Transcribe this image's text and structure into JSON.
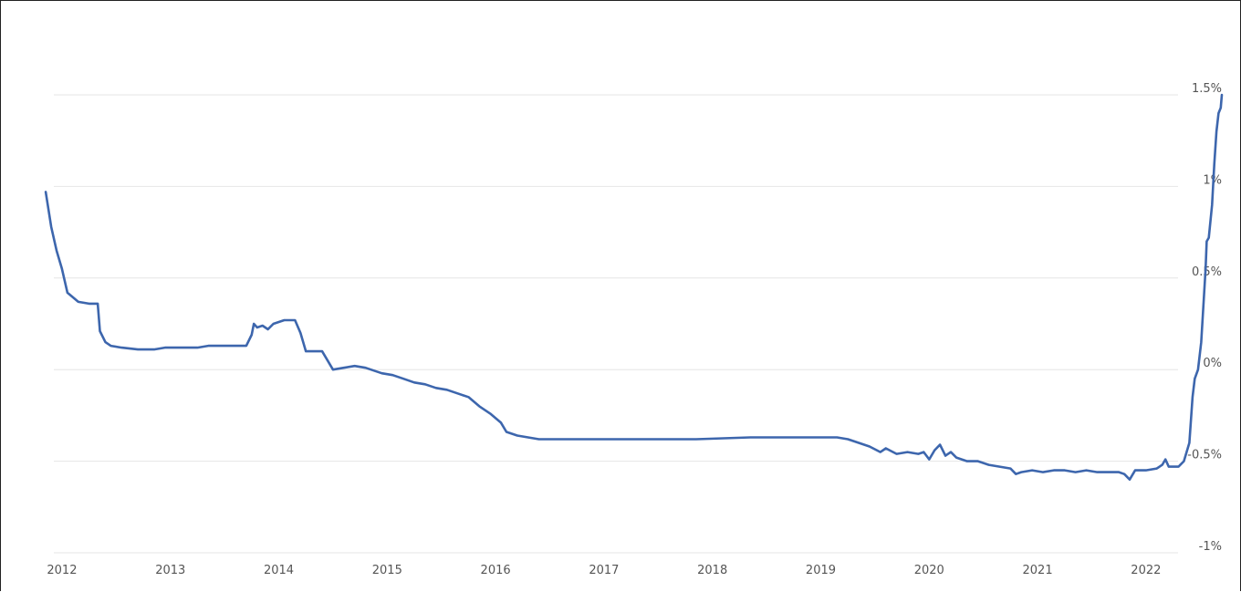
{
  "chart_data": {
    "type": "line",
    "title": "",
    "xlabel": "",
    "ylabel": "",
    "x_ticks": [
      "2012",
      "2013",
      "2014",
      "2015",
      "2016",
      "2017",
      "2018",
      "2019",
      "2020",
      "2021",
      "2022"
    ],
    "y_ticks": [
      {
        "value": 1.5,
        "label": "1.5%"
      },
      {
        "value": 1.0,
        "label": "1%"
      },
      {
        "value": 0.5,
        "label": "0.5%"
      },
      {
        "value": 0.0,
        "label": "0%"
      },
      {
        "value": -0.5,
        "label": "-0.5%"
      },
      {
        "value": -1.0,
        "label": "-1%"
      }
    ],
    "xlim": [
      2011.94,
      2022.85
    ],
    "ylim": [
      -1.0,
      1.5
    ],
    "grid": true,
    "series": [
      {
        "color": "#3d66ad",
        "points": [
          [
            2012.0,
            0.97
          ],
          [
            2012.05,
            0.78
          ],
          [
            2012.1,
            0.65
          ],
          [
            2012.15,
            0.55
          ],
          [
            2012.2,
            0.42
          ],
          [
            2012.3,
            0.37
          ],
          [
            2012.4,
            0.36
          ],
          [
            2012.48,
            0.36
          ],
          [
            2012.5,
            0.21
          ],
          [
            2012.55,
            0.15
          ],
          [
            2012.6,
            0.13
          ],
          [
            2012.7,
            0.12
          ],
          [
            2012.85,
            0.11
          ],
          [
            2013.0,
            0.11
          ],
          [
            2013.1,
            0.12
          ],
          [
            2013.25,
            0.12
          ],
          [
            2013.4,
            0.12
          ],
          [
            2013.5,
            0.13
          ],
          [
            2013.7,
            0.13
          ],
          [
            2013.85,
            0.13
          ],
          [
            2013.9,
            0.19
          ],
          [
            2013.92,
            0.25
          ],
          [
            2013.95,
            0.23
          ],
          [
            2014.0,
            0.24
          ],
          [
            2014.05,
            0.22
          ],
          [
            2014.1,
            0.25
          ],
          [
            2014.2,
            0.27
          ],
          [
            2014.3,
            0.27
          ],
          [
            2014.35,
            0.2
          ],
          [
            2014.4,
            0.1
          ],
          [
            2014.5,
            0.1
          ],
          [
            2014.55,
            0.1
          ],
          [
            2014.6,
            0.05
          ],
          [
            2014.65,
            0.0
          ],
          [
            2014.75,
            0.01
          ],
          [
            2014.85,
            0.02
          ],
          [
            2014.95,
            0.01
          ],
          [
            2015.0,
            0.0
          ],
          [
            2015.1,
            -0.02
          ],
          [
            2015.2,
            -0.03
          ],
          [
            2015.3,
            -0.05
          ],
          [
            2015.4,
            -0.07
          ],
          [
            2015.5,
            -0.08
          ],
          [
            2015.6,
            -0.1
          ],
          [
            2015.7,
            -0.11
          ],
          [
            2015.8,
            -0.13
          ],
          [
            2015.9,
            -0.15
          ],
          [
            2016.0,
            -0.2
          ],
          [
            2016.1,
            -0.24
          ],
          [
            2016.2,
            -0.29
          ],
          [
            2016.25,
            -0.34
          ],
          [
            2016.35,
            -0.36
          ],
          [
            2016.45,
            -0.37
          ],
          [
            2016.55,
            -0.38
          ],
          [
            2016.7,
            -0.38
          ],
          [
            2017.0,
            -0.38
          ],
          [
            2017.5,
            -0.38
          ],
          [
            2018.0,
            -0.38
          ],
          [
            2018.5,
            -0.37
          ],
          [
            2019.0,
            -0.37
          ],
          [
            2019.3,
            -0.37
          ],
          [
            2019.4,
            -0.38
          ],
          [
            2019.5,
            -0.4
          ],
          [
            2019.6,
            -0.42
          ],
          [
            2019.7,
            -0.45
          ],
          [
            2019.75,
            -0.43
          ],
          [
            2019.85,
            -0.46
          ],
          [
            2019.95,
            -0.45
          ],
          [
            2020.05,
            -0.46
          ],
          [
            2020.1,
            -0.45
          ],
          [
            2020.15,
            -0.49
          ],
          [
            2020.2,
            -0.44
          ],
          [
            2020.25,
            -0.41
          ],
          [
            2020.3,
            -0.47
          ],
          [
            2020.35,
            -0.45
          ],
          [
            2020.4,
            -0.48
          ],
          [
            2020.5,
            -0.5
          ],
          [
            2020.6,
            -0.5
          ],
          [
            2020.7,
            -0.52
          ],
          [
            2020.8,
            -0.53
          ],
          [
            2020.9,
            -0.54
          ],
          [
            2020.95,
            -0.57
          ],
          [
            2021.0,
            -0.56
          ],
          [
            2021.1,
            -0.55
          ],
          [
            2021.2,
            -0.56
          ],
          [
            2021.3,
            -0.55
          ],
          [
            2021.4,
            -0.55
          ],
          [
            2021.5,
            -0.56
          ],
          [
            2021.6,
            -0.55
          ],
          [
            2021.7,
            -0.56
          ],
          [
            2021.8,
            -0.56
          ],
          [
            2021.9,
            -0.56
          ],
          [
            2021.95,
            -0.57
          ],
          [
            2022.0,
            -0.6
          ],
          [
            2022.05,
            -0.55
          ],
          [
            2022.15,
            -0.55
          ],
          [
            2022.25,
            -0.54
          ],
          [
            2022.3,
            -0.52
          ],
          [
            2022.33,
            -0.49
          ],
          [
            2022.36,
            -0.53
          ],
          [
            2022.45,
            -0.53
          ],
          [
            2022.5,
            -0.5
          ],
          [
            2022.55,
            -0.4
          ],
          [
            2022.58,
            -0.15
          ],
          [
            2022.6,
            -0.05
          ],
          [
            2022.63,
            0.0
          ],
          [
            2022.66,
            0.15
          ],
          [
            2022.68,
            0.35
          ],
          [
            2022.7,
            0.55
          ],
          [
            2022.71,
            0.7
          ],
          [
            2022.73,
            0.72
          ],
          [
            2022.76,
            0.9
          ],
          [
            2022.78,
            1.12
          ],
          [
            2022.8,
            1.3
          ],
          [
            2022.82,
            1.4
          ],
          [
            2022.84,
            1.43
          ],
          [
            2022.85,
            1.5
          ]
        ]
      }
    ]
  }
}
